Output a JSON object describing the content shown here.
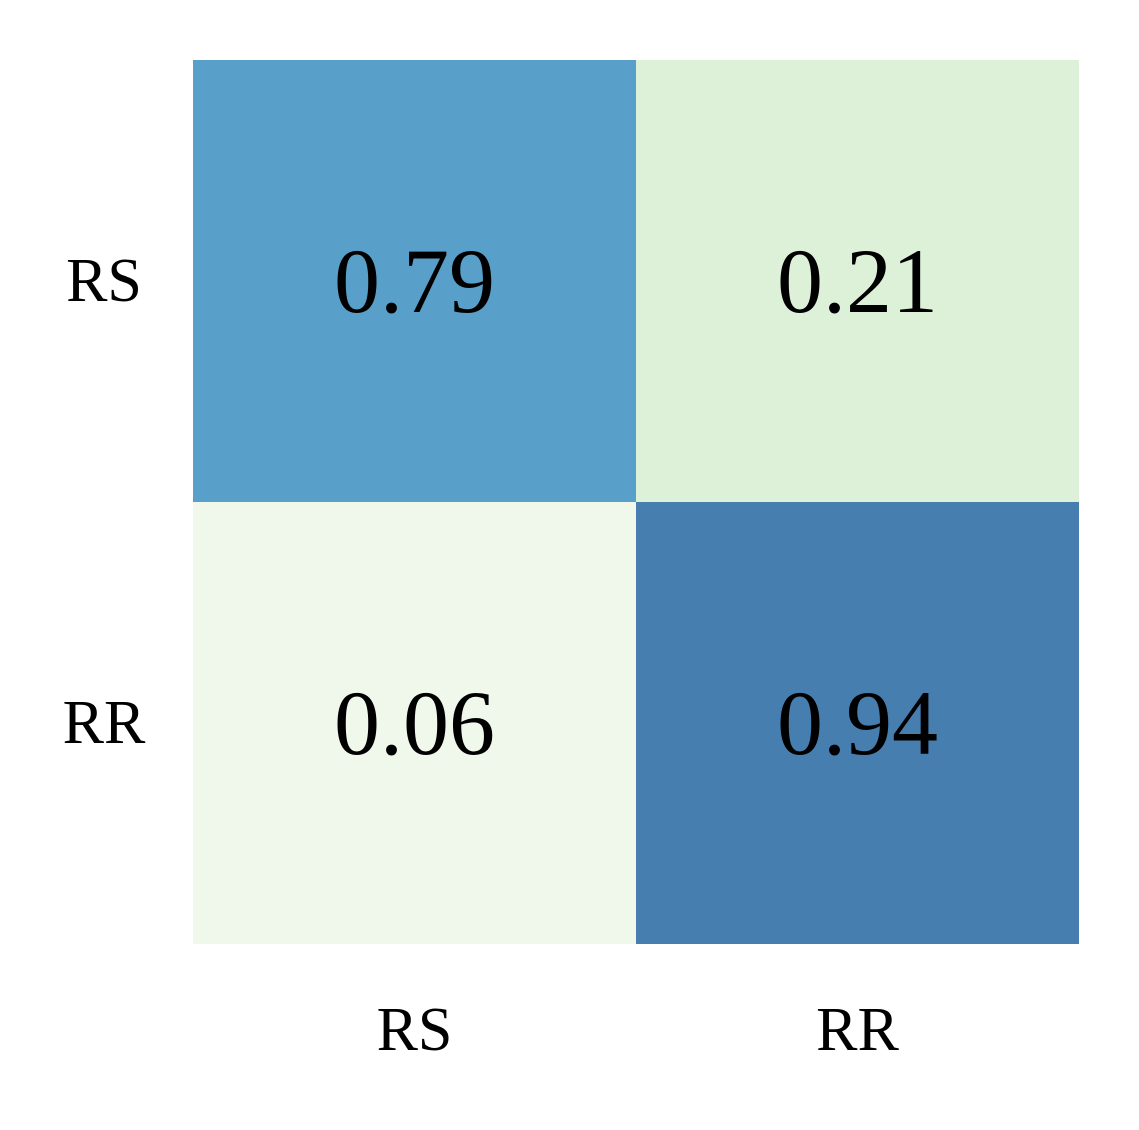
{
  "chart_data": {
    "type": "heatmap",
    "rows": [
      "RS",
      "RR"
    ],
    "columns": [
      "RS",
      "RR"
    ],
    "values": [
      [
        0.79,
        0.21
      ],
      [
        0.06,
        0.94
      ]
    ],
    "value_labels": [
      [
        "0.79",
        "0.21"
      ],
      [
        "0.06",
        "0.94"
      ]
    ],
    "cell_colors": [
      [
        "#589fc9",
        "#ddf1d9"
      ],
      [
        "#f0f8ec",
        "#477eb0"
      ]
    ],
    "title": "",
    "xlabel": "",
    "ylabel": "",
    "colorbar": false,
    "grid": false
  }
}
